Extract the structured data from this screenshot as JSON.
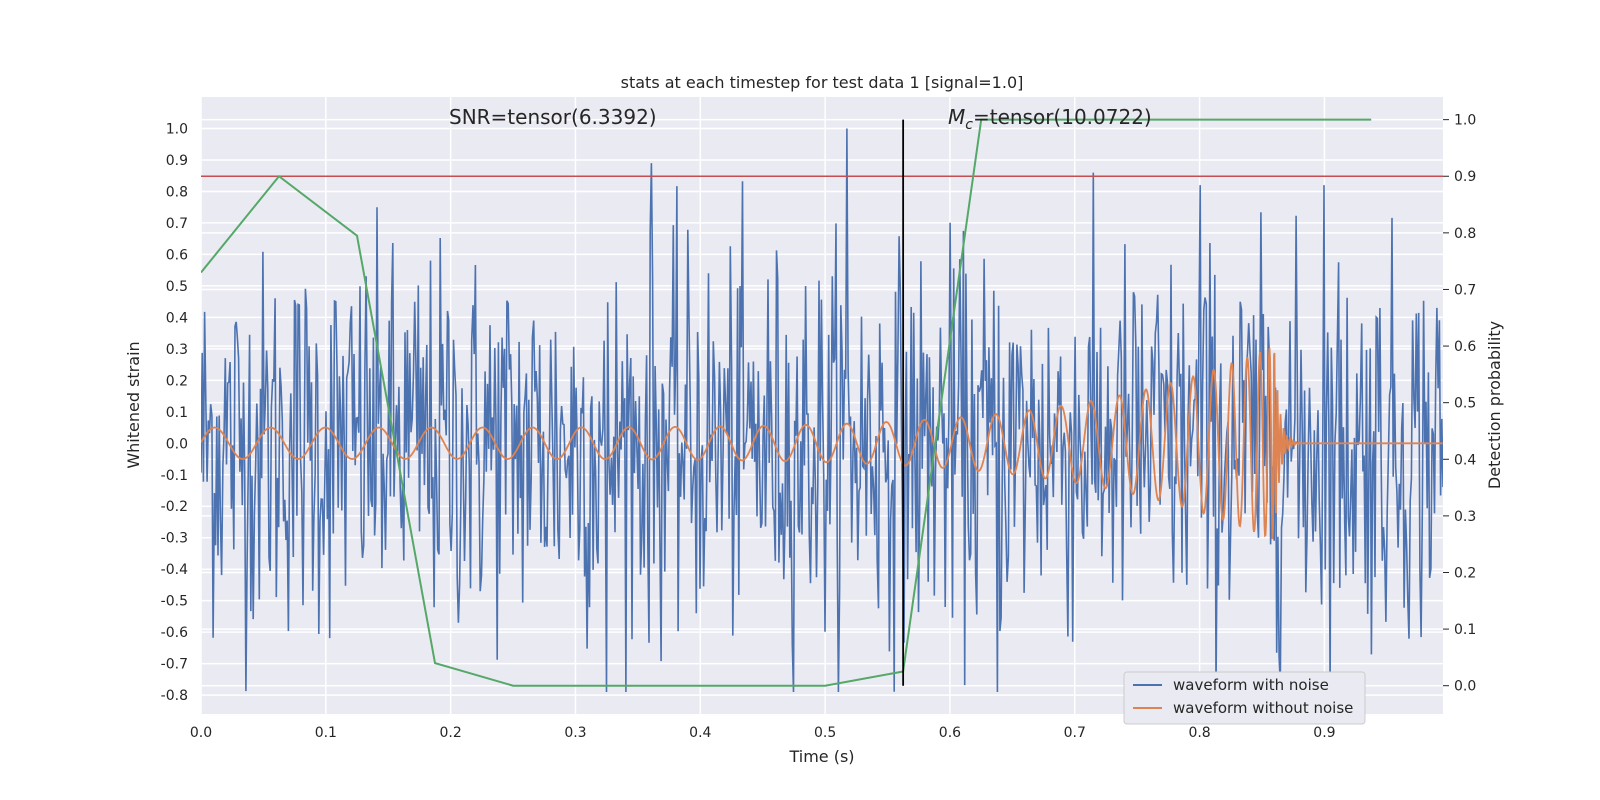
{
  "chart_data": {
    "type": "line",
    "title": "stats at each timestep for test data 1 [signal=1.0]",
    "xlabel": "Time (s)",
    "ylabel": "Whitened strain",
    "y2label": "Detection probability",
    "xlim": [
      0.0,
      0.995
    ],
    "ylim": [
      -0.86,
      1.1
    ],
    "y2lim": [
      -0.05,
      1.04
    ],
    "x_ticks": [
      "0.0",
      "0.1",
      "0.2",
      "0.3",
      "0.4",
      "0.5",
      "0.6",
      "0.7",
      "0.8",
      "0.9"
    ],
    "y_ticks": [
      "1.0",
      "0.9",
      "0.8",
      "0.7",
      "0.6",
      "0.5",
      "0.4",
      "0.3",
      "0.2",
      "0.1",
      "0.0",
      "-0.1",
      "-0.2",
      "-0.3",
      "-0.4",
      "-0.5",
      "-0.6",
      "-0.7",
      "-0.8"
    ],
    "y2_ticks": [
      "1.0",
      "0.9",
      "0.8",
      "0.7",
      "0.6",
      "0.5",
      "0.4",
      "0.3",
      "0.2",
      "0.1",
      "0.0"
    ],
    "grid": true,
    "legend_position": "lower-right",
    "annotations": {
      "snr_text": "SNR=tensor(6.3392)",
      "mc_symbol": "M",
      "mc_sub": "c",
      "mc_value": "=tensor(10.0722)"
    },
    "threshold": {
      "y2": 0.9,
      "color": "#c44e52"
    },
    "merger_time": 0.5625,
    "series": [
      {
        "name": "waveform with noise",
        "color": "#4c72b0",
        "axis": "left",
        "x_start": 0.0,
        "x_end": 0.995,
        "n_points": 1024,
        "std": 0.3,
        "max": 1.0,
        "min": -0.79,
        "notable_peaks": [
          [
            0.361,
            0.89
          ],
          [
            0.517,
            1.0
          ],
          [
            0.8,
            0.82
          ],
          [
            0.9,
            0.82
          ],
          [
            0.325,
            -0.79
          ],
          [
            0.638,
            -0.79
          ]
        ]
      },
      {
        "name": "waveform without noise",
        "color": "#dd8452",
        "axis": "left",
        "chirp_start_freq_hz": 22,
        "chirp_end_time": 0.86,
        "amplitude_start": 0.05,
        "amplitude_end": 0.31,
        "ringdown_end": 0.88
      },
      {
        "name": "",
        "color": "#55a868",
        "axis": "right",
        "x": [
          0.0,
          0.0625,
          0.125,
          0.1875,
          0.25,
          0.3125,
          0.375,
          0.4375,
          0.5,
          0.5625,
          0.625,
          0.6875,
          0.75,
          0.8125,
          0.875,
          0.9375
        ],
        "values": [
          0.73,
          0.9,
          0.795,
          0.04,
          0.0,
          0.0,
          0.0,
          0.0,
          0.0,
          0.025,
          1.0,
          1.0,
          1.0,
          1.0,
          1.0,
          1.0
        ]
      }
    ]
  }
}
